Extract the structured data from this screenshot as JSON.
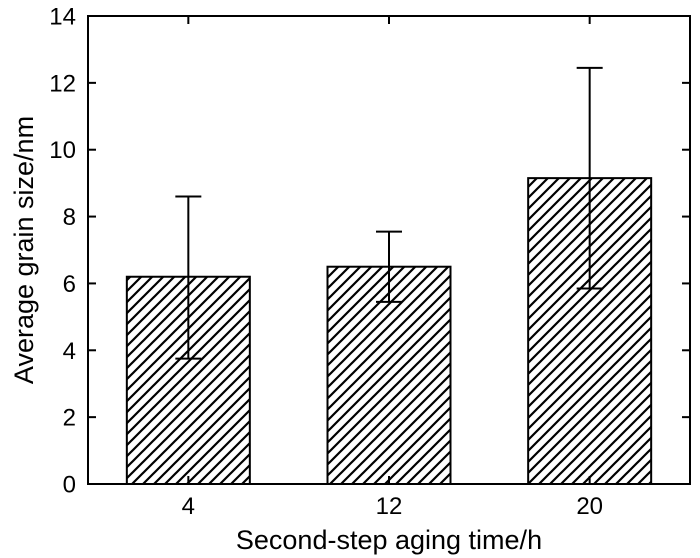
{
  "chart_data": {
    "type": "bar",
    "title": "",
    "xlabel": "Second-step aging time/h",
    "ylabel": "Average grain size/nm",
    "categories": [
      "4",
      "12",
      "20"
    ],
    "values": [
      6.2,
      6.5,
      9.15
    ],
    "error_upper": [
      8.6,
      7.55,
      12.45
    ],
    "error_lower": [
      3.75,
      5.45,
      5.85
    ],
    "ylim": [
      0,
      14
    ],
    "yticks": [
      "0",
      "2",
      "4",
      "6",
      "8",
      "10",
      "12",
      "14"
    ],
    "ytick_values": [
      0,
      2,
      4,
      6,
      8,
      10,
      12,
      14
    ],
    "bar_fill": "hatched",
    "grid": false,
    "colors": {
      "bar_edge": "#000000",
      "hatch": "#000000",
      "background": "#ffffff"
    }
  }
}
